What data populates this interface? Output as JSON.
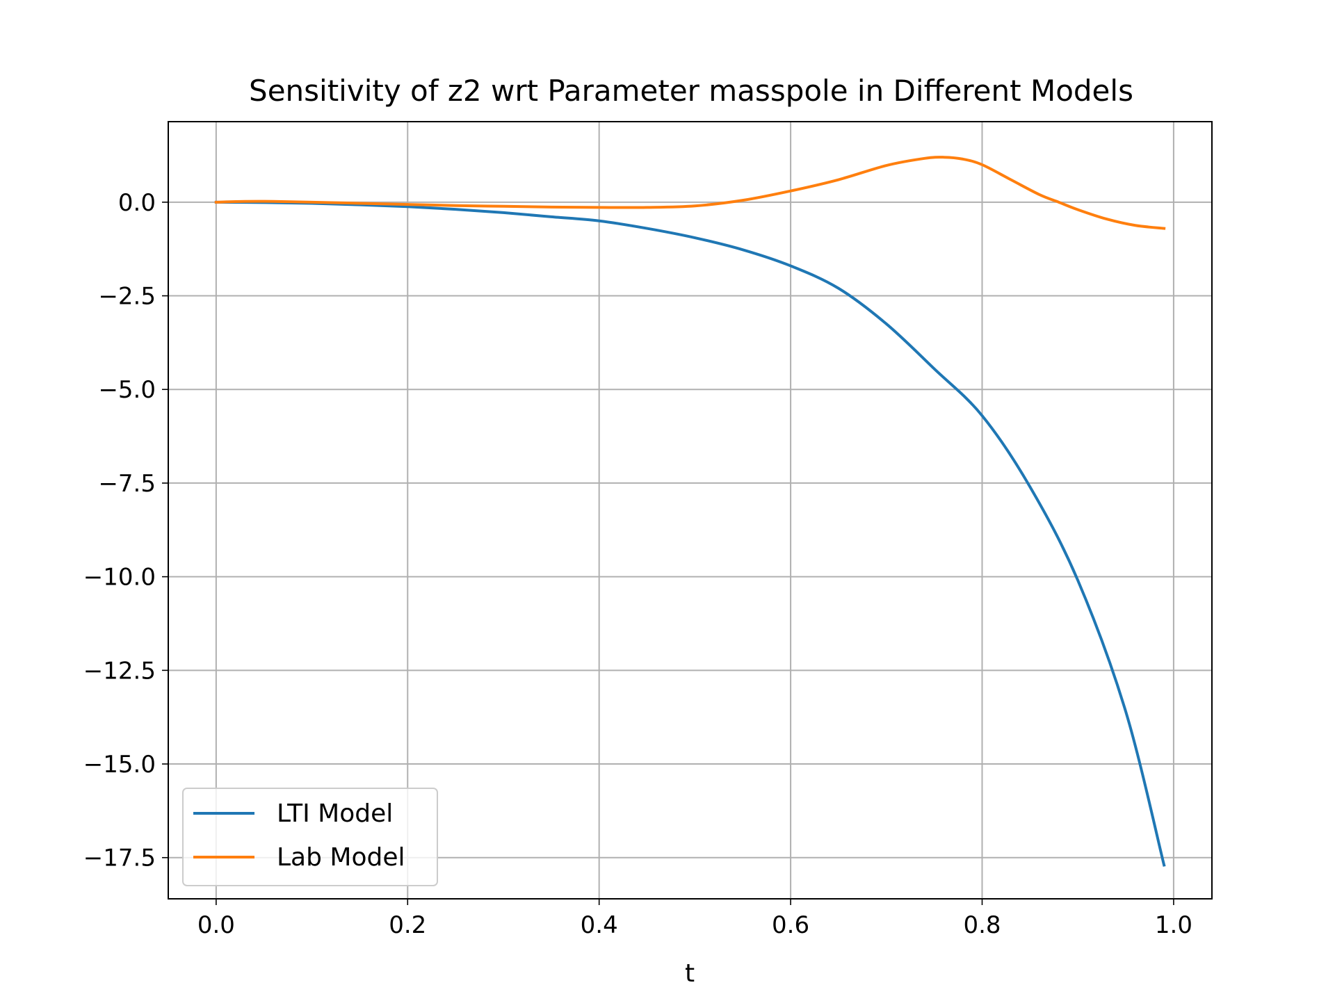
{
  "chart_data": {
    "type": "line",
    "title": "Sensitivity of z2 wrt Parameter masspole in Different Models",
    "xlabel": "t",
    "ylabel": "",
    "xlim": [
      -0.05,
      1.04
    ],
    "ylim": [
      -18.6,
      2.15
    ],
    "grid": true,
    "legend_position": "lower-left",
    "x_ticks": [
      0.0,
      0.2,
      0.4,
      0.6,
      0.8,
      1.0
    ],
    "x_tick_labels": [
      "0.0",
      "0.2",
      "0.4",
      "0.6",
      "0.8",
      "1.0"
    ],
    "y_ticks": [
      0.0,
      -2.5,
      -5.0,
      -7.5,
      -10.0,
      -12.5,
      -15.0,
      -17.5
    ],
    "y_tick_labels": [
      "0.0",
      "−2.5",
      "−5.0",
      "−7.5",
      "−10.0",
      "−12.5",
      "−15.0",
      "−17.5"
    ],
    "series": [
      {
        "name": "LTI Model",
        "color": "#1f77b4",
        "x": [
          0.0,
          0.05,
          0.1,
          0.15,
          0.2,
          0.25,
          0.3,
          0.35,
          0.4,
          0.45,
          0.5,
          0.55,
          0.6,
          0.65,
          0.7,
          0.75,
          0.8,
          0.85,
          0.9,
          0.95,
          0.99
        ],
        "y": [
          0.0,
          -0.01,
          -0.03,
          -0.07,
          -0.12,
          -0.19,
          -0.28,
          -0.39,
          -0.5,
          -0.7,
          -0.95,
          -1.27,
          -1.7,
          -2.3,
          -3.25,
          -4.45,
          -5.7,
          -7.6,
          -10.1,
          -13.6,
          -17.7
        ]
      },
      {
        "name": "Lab Model",
        "color": "#ff7f0e",
        "x": [
          0.0,
          0.03,
          0.06,
          0.1,
          0.15,
          0.2,
          0.25,
          0.3,
          0.35,
          0.4,
          0.45,
          0.5,
          0.55,
          0.6,
          0.65,
          0.7,
          0.74,
          0.76,
          0.78,
          0.8,
          0.83,
          0.86,
          0.88,
          0.9,
          0.93,
          0.96,
          0.99
        ],
        "y": [
          0.0,
          0.02,
          0.02,
          0.0,
          -0.03,
          -0.06,
          -0.09,
          -0.11,
          -0.13,
          -0.14,
          -0.14,
          -0.1,
          0.05,
          0.3,
          0.6,
          0.98,
          1.17,
          1.2,
          1.15,
          1.0,
          0.6,
          0.2,
          0.0,
          -0.2,
          -0.45,
          -0.62,
          -0.7
        ]
      }
    ]
  }
}
